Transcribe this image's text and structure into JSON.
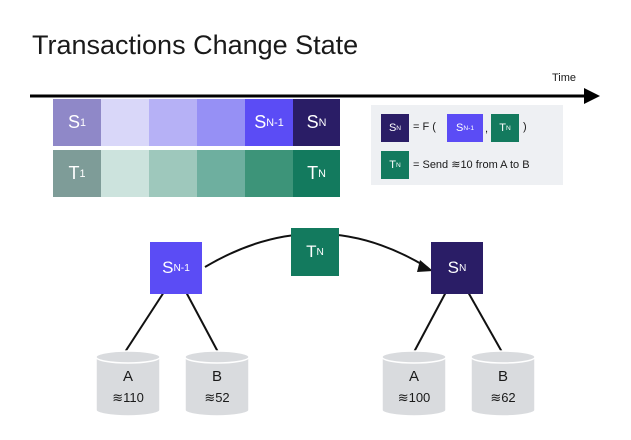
{
  "title": "Transactions Change State",
  "timeline": {
    "label": "Time"
  },
  "state_row": {
    "first": {
      "letter": "S",
      "sub": "1"
    },
    "prev": {
      "letter": "S",
      "sub": "N-1"
    },
    "last": {
      "letter": "S",
      "sub": "N"
    }
  },
  "tx_row": {
    "first": {
      "letter": "T",
      "sub": "1"
    },
    "last": {
      "letter": "T",
      "sub": "N"
    }
  },
  "legend": {
    "line1": {
      "chip": {
        "letter": "S",
        "sub": "N"
      },
      "eq": "= F (",
      "arg1": {
        "letter": "S",
        "sub": "N-1"
      },
      "comma": ",",
      "arg2": {
        "letter": "T",
        "sub": "N"
      },
      "close": ")"
    },
    "line2": {
      "chip": {
        "letter": "T",
        "sub": "N"
      },
      "text": "= Send ≋10 from A to B"
    }
  },
  "diagram": {
    "left_state": {
      "letter": "S",
      "sub": "N-1"
    },
    "transaction": {
      "letter": "T",
      "sub": "N"
    },
    "right_state": {
      "letter": "S",
      "sub": "N"
    },
    "left_accounts": [
      {
        "name": "A",
        "balance": "≋110"
      },
      {
        "name": "B",
        "balance": "≋52"
      }
    ],
    "right_accounts": [
      {
        "name": "A",
        "balance": "≋100"
      },
      {
        "name": "B",
        "balance": "≋62"
      }
    ]
  },
  "colors": {
    "state_dark": "#2a1d66",
    "state_accent": "#5b4cf5",
    "tx_green": "#137a5e",
    "storage_grey": "#d9dbde"
  }
}
